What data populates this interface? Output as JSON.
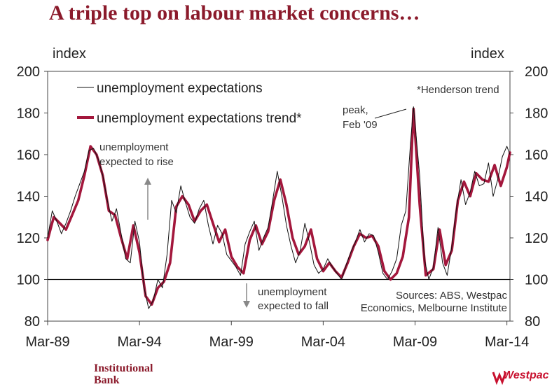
{
  "header": {
    "title": "A triple top on labour market concerns…"
  },
  "axis": {
    "left_unit": "index",
    "right_unit": "index"
  },
  "brand": {
    "left": "Institutional Bank",
    "right": "Westpac"
  },
  "colors": {
    "trend": "#a3173c",
    "raw": "#111111",
    "title": "#8b1a2b",
    "arrow": "#888888"
  },
  "chart_data": {
    "type": "line",
    "title": "A triple top on labour market concerns…",
    "ylabel": "index",
    "ylim": [
      80,
      200
    ],
    "yticks": [
      80,
      100,
      120,
      140,
      160,
      180,
      200
    ],
    "xlim": [
      "1989-03",
      "2014-05"
    ],
    "xticks": [
      "Mar-89",
      "Mar-94",
      "Mar-99",
      "Mar-04",
      "Mar-09",
      "Mar-14"
    ],
    "xtick_dates": [
      "1989-03",
      "1994-03",
      "1999-03",
      "2004-03",
      "2009-03",
      "2014-03"
    ],
    "reference_line": 100,
    "legend": [
      "unemployment expectations",
      "unemployment expectations trend*"
    ],
    "footnote": "*Henderson trend",
    "annotations": [
      {
        "text": [
          "peak,",
          "Feb '09"
        ]
      },
      {
        "text": [
          "unemployment",
          "expected to rise"
        ]
      },
      {
        "text": [
          "unemployment",
          "expected to fall"
        ]
      }
    ],
    "source": [
      "Sources: ABS, Westpac",
      "Economics, Melbourne Institute"
    ],
    "series": [
      {
        "name": "unemployment expectations trend*",
        "x": [
          "1989-03",
          "1989-07",
          "1989-11",
          "1990-03",
          "1990-07",
          "1990-11",
          "1991-03",
          "1991-07",
          "1991-11",
          "1992-03",
          "1992-07",
          "1992-11",
          "1993-03",
          "1993-07",
          "1993-11",
          "1994-03",
          "1994-07",
          "1994-11",
          "1995-03",
          "1995-07",
          "1995-11",
          "1996-03",
          "1996-07",
          "1996-11",
          "1997-03",
          "1997-07",
          "1997-11",
          "1998-03",
          "1998-07",
          "1998-11",
          "1999-03",
          "1999-07",
          "1999-11",
          "2000-03",
          "2000-07",
          "2000-11",
          "2001-03",
          "2001-07",
          "2001-11",
          "2002-03",
          "2002-07",
          "2002-11",
          "2003-03",
          "2003-07",
          "2003-11",
          "2004-03",
          "2004-07",
          "2004-11",
          "2005-03",
          "2005-07",
          "2005-11",
          "2006-03",
          "2006-07",
          "2006-11",
          "2007-03",
          "2007-07",
          "2007-11",
          "2008-03",
          "2008-07",
          "2008-11",
          "2009-02",
          "2009-06",
          "2009-10",
          "2010-03",
          "2010-07",
          "2010-11",
          "2011-03",
          "2011-07",
          "2011-11",
          "2012-03",
          "2012-07",
          "2012-11",
          "2013-03",
          "2013-07",
          "2013-11",
          "2014-03",
          "2014-05"
        ],
        "values": [
          119,
          130,
          127,
          124,
          131,
          138,
          150,
          164,
          160,
          150,
          133,
          131,
          120,
          110,
          126,
          113,
          92,
          88,
          96,
          99,
          108,
          135,
          140,
          136,
          128,
          133,
          136,
          127,
          118,
          124,
          111,
          106,
          103,
          119,
          126,
          117,
          123,
          138,
          148,
          136,
          120,
          112,
          116,
          124,
          110,
          104,
          108,
          104,
          101,
          108,
          116,
          122,
          120,
          121,
          116,
          104,
          100,
          103,
          111,
          130,
          182,
          136,
          102,
          105,
          124,
          107,
          114,
          138,
          147,
          140,
          151,
          148,
          147,
          155,
          145,
          154,
          161
        ]
      },
      {
        "name": "unemployment expectations",
        "x": [
          "1989-03",
          "1989-06",
          "1989-09",
          "1989-12",
          "1990-03",
          "1990-06",
          "1990-09",
          "1990-12",
          "1991-03",
          "1991-06",
          "1991-09",
          "1991-12",
          "1992-03",
          "1992-06",
          "1992-09",
          "1992-12",
          "1993-03",
          "1993-06",
          "1993-09",
          "1993-12",
          "1994-03",
          "1994-06",
          "1994-09",
          "1994-12",
          "1995-03",
          "1995-06",
          "1995-09",
          "1995-12",
          "1996-03",
          "1996-06",
          "1996-09",
          "1996-12",
          "1997-03",
          "1997-06",
          "1997-09",
          "1997-12",
          "1998-03",
          "1998-06",
          "1998-09",
          "1998-12",
          "1999-03",
          "1999-06",
          "1999-09",
          "1999-12",
          "2000-03",
          "2000-06",
          "2000-09",
          "2000-12",
          "2001-03",
          "2001-06",
          "2001-09",
          "2001-12",
          "2002-03",
          "2002-06",
          "2002-09",
          "2002-12",
          "2003-03",
          "2003-06",
          "2003-09",
          "2003-12",
          "2004-03",
          "2004-06",
          "2004-09",
          "2004-12",
          "2005-03",
          "2005-06",
          "2005-09",
          "2005-12",
          "2006-03",
          "2006-06",
          "2006-09",
          "2006-12",
          "2007-03",
          "2007-06",
          "2007-09",
          "2007-12",
          "2008-03",
          "2008-06",
          "2008-09",
          "2008-12",
          "2009-02",
          "2009-06",
          "2009-09",
          "2009-12",
          "2010-03",
          "2010-06",
          "2010-09",
          "2010-12",
          "2011-03",
          "2011-06",
          "2011-09",
          "2011-12",
          "2012-03",
          "2012-06",
          "2012-09",
          "2012-12",
          "2013-03",
          "2013-06",
          "2013-09",
          "2013-12",
          "2014-03",
          "2014-05"
        ],
        "values": [
          120,
          133,
          128,
          122,
          127,
          133,
          140,
          146,
          152,
          162,
          163,
          158,
          150,
          138,
          128,
          134,
          122,
          110,
          108,
          128,
          118,
          96,
          86,
          90,
          100,
          96,
          112,
          138,
          132,
          145,
          137,
          130,
          127,
          134,
          138,
          126,
          117,
          126,
          122,
          112,
          109,
          106,
          102,
          117,
          123,
          128,
          114,
          120,
          125,
          138,
          152,
          140,
          126,
          116,
          108,
          114,
          127,
          118,
          107,
          103,
          105,
          110,
          106,
          103,
          100,
          107,
          113,
          118,
          124,
          118,
          122,
          121,
          113,
          103,
          100,
          104,
          110,
          126,
          133,
          165,
          183,
          150,
          110,
          100,
          106,
          125,
          108,
          102,
          116,
          134,
          148,
          136,
          142,
          152,
          145,
          146,
          156,
          140,
          148,
          159,
          164,
          160
        ]
      }
    ]
  }
}
